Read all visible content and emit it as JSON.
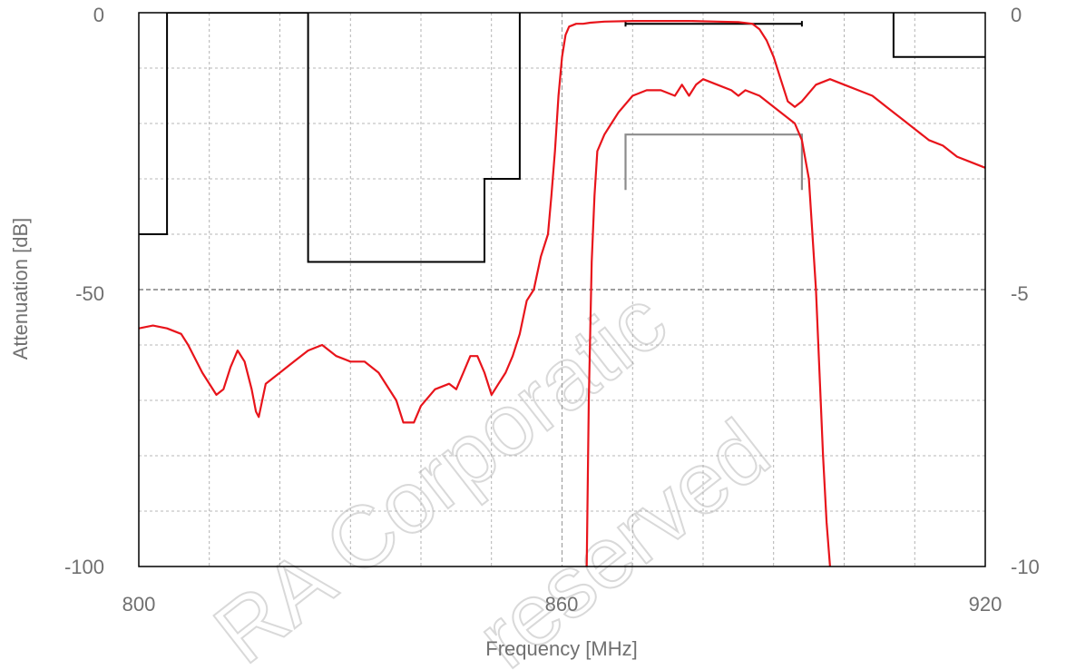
{
  "chart_data": {
    "type": "line",
    "xlabel": "Frequency [MHz]",
    "ylabel": "Attenuation  [dB]",
    "xlim": [
      800,
      920
    ],
    "ylim": [
      -100,
      0
    ],
    "y2lim": [
      -10,
      0
    ],
    "x_ticks": [
      "800",
      "860",
      "920"
    ],
    "y_ticks": [
      "0",
      "-50",
      "-100"
    ],
    "y2_ticks": [
      "0",
      "-5",
      "-10"
    ],
    "grid": true,
    "colors": {
      "series": "#e8141b",
      "mask": "#000000",
      "mask_secondary": "#8c8c8c",
      "grid": "#a0a0a0",
      "text": "#707070"
    },
    "watermark": [
      "RA Corporatic",
      "reserved"
    ],
    "series": [
      {
        "axis": "left",
        "x": [
          800,
          802,
          804,
          806,
          807,
          809,
          811,
          812,
          813,
          814,
          815,
          816,
          816.6,
          817,
          818,
          820,
          822,
          824,
          826,
          828,
          830,
          832,
          834,
          836.5,
          837.5,
          839,
          840,
          842,
          844,
          845,
          846,
          847,
          848,
          849,
          850,
          851,
          852,
          853,
          854,
          855,
          856,
          857,
          858,
          858.5,
          859,
          859.5,
          860,
          860.5,
          861,
          862,
          863,
          864,
          866,
          870,
          874,
          878,
          882,
          885,
          887,
          888,
          889,
          890,
          891,
          892,
          893,
          894,
          896,
          898,
          900,
          902,
          904,
          906,
          908,
          910,
          912,
          914,
          916,
          918,
          920
        ],
        "y": [
          -57,
          -56.5,
          -57,
          -58,
          -60,
          -65,
          -69,
          -68,
          -64,
          -61,
          -63,
          -68,
          -72,
          -73,
          -67,
          -65,
          -63,
          -61,
          -60,
          -62,
          -63,
          -63,
          -65,
          -70,
          -74,
          -74,
          -71,
          -68,
          -67,
          -68,
          -65,
          -62,
          -62,
          -65,
          -69,
          -67,
          -65,
          -62,
          -58,
          -52,
          -50,
          -44,
          -40,
          -33,
          -25,
          -15,
          -8,
          -4,
          -2.5,
          -2,
          -2,
          -1.8,
          -1.6,
          -1.5,
          -1.5,
          -1.5,
          -1.6,
          -1.7,
          -2,
          -3,
          -5,
          -8,
          -12,
          -16,
          -17,
          -16,
          -13,
          -12,
          -13,
          -14,
          -15,
          -17,
          -19,
          -21,
          -23,
          -24,
          -26,
          -27,
          -28
        ]
      },
      {
        "axis": "right",
        "x": [
          863.5,
          863.8,
          864.2,
          864.6,
          865,
          866,
          867,
          868,
          870,
          872,
          874,
          876,
          877,
          878,
          879,
          880,
          882,
          884,
          885,
          886,
          888,
          890,
          892,
          893,
          894,
          895,
          896,
          896.5,
          897,
          897.5,
          898
        ],
        "y": [
          -10,
          -7,
          -4.5,
          -3.3,
          -2.5,
          -2.2,
          -2,
          -1.8,
          -1.5,
          -1.4,
          -1.4,
          -1.5,
          -1.3,
          -1.5,
          -1.3,
          -1.2,
          -1.3,
          -1.4,
          -1.5,
          -1.4,
          -1.5,
          -1.7,
          -1.9,
          -2,
          -2.3,
          -3,
          -5,
          -6.5,
          -8,
          -9.2,
          -10
        ]
      }
    ],
    "mask_lines": [
      {
        "axis": "left",
        "x": [
          800,
          804,
          804,
          824,
          824,
          849,
          849,
          854,
          854
        ],
        "y": [
          -40,
          -40,
          0,
          0,
          -45,
          -45,
          -30,
          -30,
          0
        ]
      },
      {
        "axis": "left",
        "x": [
          907,
          907,
          920
        ],
        "y": [
          0,
          -8,
          -8
        ]
      },
      {
        "axis": "left",
        "x": [
          869,
          869,
          869,
          894,
          894,
          894
        ],
        "y": [
          -2.5,
          -1.5,
          -2,
          -2,
          -2.5,
          -1.5
        ]
      },
      {
        "axis": "right",
        "x": [
          869,
          869,
          869,
          894,
          894,
          894
        ],
        "y": [
          -3.2,
          -2.2,
          -2.2,
          -2.2,
          -2.2,
          -3.2
        ],
        "secondary": true
      }
    ]
  }
}
